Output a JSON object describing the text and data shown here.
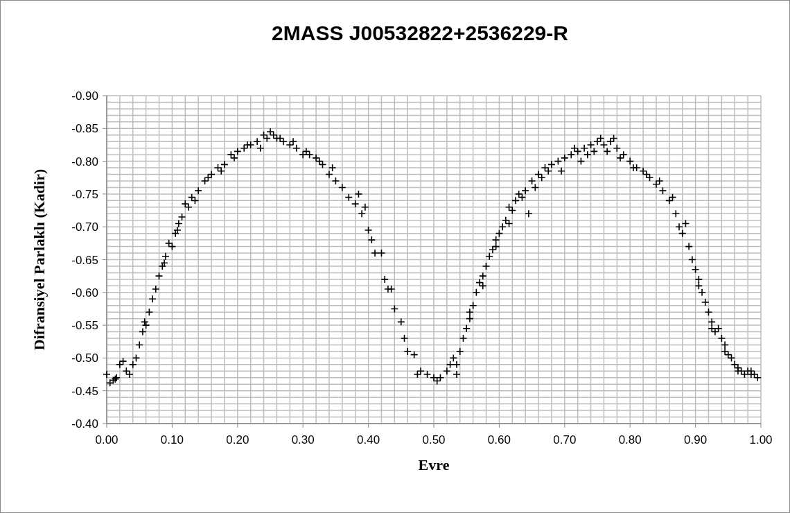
{
  "chart_data": {
    "type": "scatter",
    "title": "2MASS J00532822+2536229-R",
    "xlabel": "Evre",
    "ylabel": "Difransiyel Parlaklı (Kadir)",
    "marker": "cross",
    "grid": true,
    "xlim": [
      0,
      1
    ],
    "xticks": [
      {
        "value": 0,
        "label": "0.00"
      },
      {
        "value": 0.1,
        "label": "0.10"
      },
      {
        "value": 0.2,
        "label": "0.20"
      },
      {
        "value": 0.3,
        "label": "0.30"
      },
      {
        "value": 0.4,
        "label": "0.40"
      },
      {
        "value": 0.5,
        "label": "0.50"
      },
      {
        "value": 0.6,
        "label": "0.60"
      },
      {
        "value": 0.7,
        "label": "0.70"
      },
      {
        "value": 0.8,
        "label": "0.80"
      },
      {
        "value": 0.9,
        "label": "0.90"
      },
      {
        "value": 1,
        "label": "1.00"
      }
    ],
    "ylim": [
      -0.4,
      -0.9
    ],
    "yticks": [
      {
        "value": -0.9,
        "label": "-0.90"
      },
      {
        "value": -0.85,
        "label": "-0.85"
      },
      {
        "value": -0.8,
        "label": "-0.80"
      },
      {
        "value": -0.75,
        "label": "-0.75"
      },
      {
        "value": -0.7,
        "label": "-0.70"
      },
      {
        "value": -0.65,
        "label": "-0.65"
      },
      {
        "value": -0.6,
        "label": "-0.60"
      },
      {
        "value": -0.55,
        "label": "-0.55"
      },
      {
        "value": -0.5,
        "label": "-0.50"
      },
      {
        "value": -0.45,
        "label": "-0.45"
      },
      {
        "value": -0.4,
        "label": "-0.40"
      }
    ],
    "series": [
      {
        "color": "#000000",
        "x": [
          0,
          0.005,
          0.01,
          0.015,
          0.02,
          0.025,
          0.03,
          0.035,
          0.04,
          0.045,
          0.05,
          0.055,
          0.06,
          0.065,
          0.07,
          0.075,
          0.08,
          0.085,
          0.09,
          0.095,
          0.1,
          0.105,
          0.11,
          0.115,
          0.12,
          0.125,
          0.13,
          0.14,
          0.15,
          0.16,
          0.17,
          0.18,
          0.19,
          0.2,
          0.21,
          0.22,
          0.23,
          0.24,
          0.25,
          0.26,
          0.27,
          0.28,
          0.29,
          0.3,
          0.31,
          0.32,
          0.33,
          0.34,
          0.35,
          0.36,
          0.37,
          0.38,
          0.39,
          0.4,
          0.405,
          0.41,
          0.42,
          0.425,
          0.43,
          0.435,
          0.44,
          0.45,
          0.455,
          0.46,
          0.47,
          0.475,
          0.48,
          0.49,
          0.5,
          0.505,
          0.51,
          0.52,
          0.525,
          0.53,
          0.535,
          0.54,
          0.545,
          0.55,
          0.555,
          0.56,
          0.565,
          0.57,
          0.575,
          0.58,
          0.585,
          0.59,
          0.595,
          0.6,
          0.605,
          0.61,
          0.615,
          0.62,
          0.625,
          0.63,
          0.64,
          0.645,
          0.65,
          0.66,
          0.665,
          0.67,
          0.68,
          0.69,
          0.7,
          0.71,
          0.72,
          0.73,
          0.74,
          0.75,
          0.76,
          0.77,
          0.78,
          0.79,
          0.8,
          0.81,
          0.82,
          0.83,
          0.84,
          0.85,
          0.86,
          0.87,
          0.875,
          0.88,
          0.89,
          0.895,
          0.9,
          0.905,
          0.91,
          0.915,
          0.92,
          0.925,
          0.93,
          0.935,
          0.94,
          0.945,
          0.95,
          0.955,
          0.96,
          0.965,
          0.97,
          0.975,
          0.98,
          0.985,
          0.99,
          0.995,
          0.013,
          0.058,
          0.088,
          0.108,
          0.135,
          0.155,
          0.175,
          0.195,
          0.215,
          0.235,
          0.245,
          0.255,
          0.265,
          0.285,
          0.305,
          0.325,
          0.345,
          0.385,
          0.395,
          0.535,
          0.555,
          0.575,
          0.595,
          0.615,
          0.635,
          0.655,
          0.675,
          0.695,
          0.715,
          0.725,
          0.735,
          0.745,
          0.755,
          0.765,
          0.775,
          0.785,
          0.805,
          0.825,
          0.845,
          0.865,
          0.885,
          0.905,
          0.925,
          0.945,
          0.965,
          0.985
        ],
        "values": [
          -0.475,
          -0.462,
          -0.466,
          -0.47,
          -0.49,
          -0.495,
          -0.48,
          -0.475,
          -0.49,
          -0.5,
          -0.52,
          -0.54,
          -0.55,
          -0.57,
          -0.59,
          -0.605,
          -0.625,
          -0.64,
          -0.655,
          -0.675,
          -0.67,
          -0.69,
          -0.705,
          -0.715,
          -0.735,
          -0.73,
          -0.745,
          -0.755,
          -0.77,
          -0.78,
          -0.79,
          -0.795,
          -0.81,
          -0.815,
          -0.82,
          -0.825,
          -0.83,
          -0.84,
          -0.845,
          -0.835,
          -0.83,
          -0.825,
          -0.82,
          -0.81,
          -0.81,
          -0.805,
          -0.795,
          -0.78,
          -0.77,
          -0.76,
          -0.745,
          -0.735,
          -0.72,
          -0.695,
          -0.68,
          -0.66,
          -0.66,
          -0.62,
          -0.605,
          -0.605,
          -0.575,
          -0.555,
          -0.53,
          -0.51,
          -0.505,
          -0.475,
          -0.48,
          -0.475,
          -0.47,
          -0.465,
          -0.47,
          -0.48,
          -0.49,
          -0.5,
          -0.475,
          -0.51,
          -0.53,
          -0.545,
          -0.56,
          -0.58,
          -0.6,
          -0.615,
          -0.625,
          -0.64,
          -0.655,
          -0.665,
          -0.68,
          -0.69,
          -0.7,
          -0.71,
          -0.73,
          -0.725,
          -0.74,
          -0.75,
          -0.755,
          -0.72,
          -0.77,
          -0.78,
          -0.775,
          -0.79,
          -0.795,
          -0.8,
          -0.805,
          -0.81,
          -0.815,
          -0.82,
          -0.825,
          -0.83,
          -0.825,
          -0.83,
          -0.82,
          -0.81,
          -0.8,
          -0.79,
          -0.785,
          -0.775,
          -0.765,
          -0.755,
          -0.74,
          -0.72,
          -0.7,
          -0.69,
          -0.67,
          -0.65,
          -0.635,
          -0.62,
          -0.6,
          -0.585,
          -0.57,
          -0.555,
          -0.54,
          -0.545,
          -0.53,
          -0.52,
          -0.505,
          -0.5,
          -0.49,
          -0.48,
          -0.48,
          -0.475,
          -0.48,
          -0.475,
          -0.475,
          -0.47,
          -0.468,
          -0.555,
          -0.645,
          -0.695,
          -0.74,
          -0.775,
          -0.785,
          -0.805,
          -0.825,
          -0.82,
          -0.835,
          -0.84,
          -0.835,
          -0.83,
          -0.815,
          -0.8,
          -0.79,
          -0.75,
          -0.73,
          -0.49,
          -0.57,
          -0.61,
          -0.67,
          -0.705,
          -0.745,
          -0.76,
          -0.785,
          -0.785,
          -0.82,
          -0.8,
          -0.81,
          -0.815,
          -0.835,
          -0.815,
          -0.835,
          -0.805,
          -0.79,
          -0.78,
          -0.77,
          -0.745,
          -0.705,
          -0.61,
          -0.545,
          -0.51,
          -0.485,
          -0.48
        ]
      }
    ]
  }
}
